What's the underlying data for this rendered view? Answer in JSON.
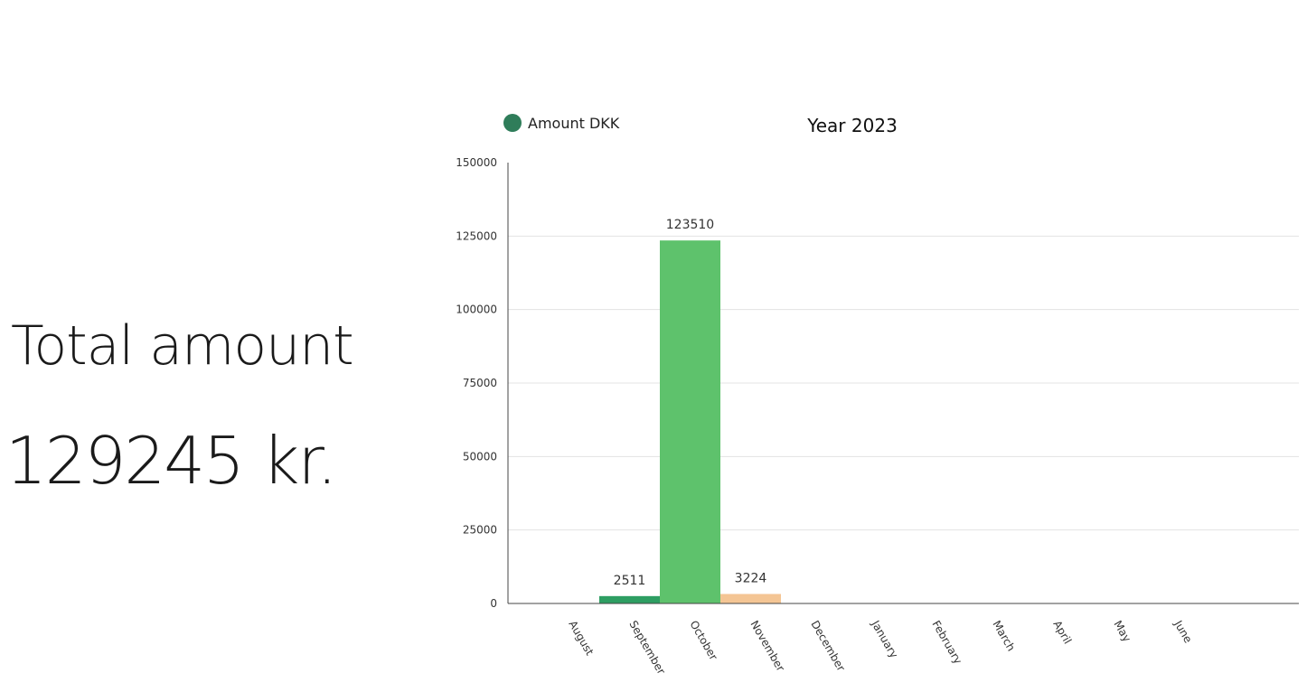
{
  "summary": {
    "title": "Total amount",
    "total_value": "129245 kr."
  },
  "colors": {
    "legend_dot": "#2f7d5a",
    "september": "#2e9e62",
    "october": "#5ec26c",
    "november": "#f4c594",
    "grid": "#e3e3e3",
    "axis": "#444444",
    "text": "#333333"
  },
  "chart_data": {
    "type": "bar",
    "title": "Year 2023",
    "legend": [
      "Amount DKK"
    ],
    "legend_position": "top-left",
    "categories": [
      "August",
      "September",
      "October",
      "November",
      "December",
      "January",
      "February",
      "March",
      "April",
      "May",
      "June"
    ],
    "series": [
      {
        "name": "Amount DKK",
        "values": [
          0,
          2511,
          123510,
          3224,
          0,
          0,
          0,
          0,
          0,
          0,
          0
        ]
      }
    ],
    "data_labels": [
      "",
      "2511",
      "123510",
      "3224",
      "",
      "",
      "",
      "",
      "",
      "",
      ""
    ],
    "bar_colors": [
      "#2e9e62",
      "#2e9e62",
      "#5ec26c",
      "#f4c594",
      "#5ec26c",
      "#5ec26c",
      "#5ec26c",
      "#5ec26c",
      "#5ec26c",
      "#5ec26c",
      "#5ec26c"
    ],
    "yticks": [
      0,
      25000,
      50000,
      75000,
      100000,
      125000,
      150000
    ],
    "ylim": [
      0,
      150000
    ],
    "grid": true
  }
}
